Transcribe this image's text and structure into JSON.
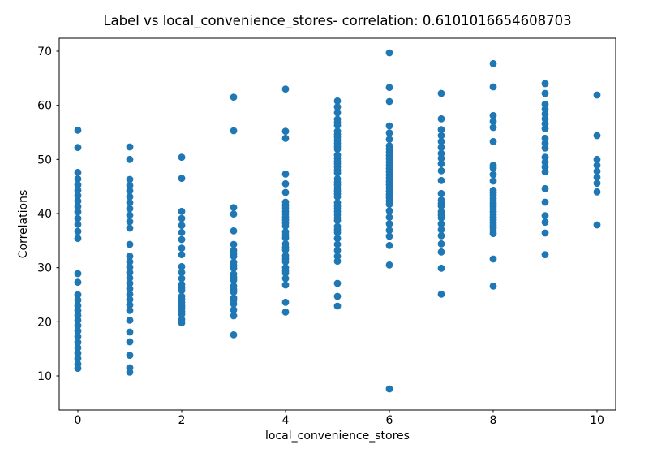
{
  "chart_data": {
    "type": "scatter",
    "title": "Label vs local_convenience_stores- correlation: 0.6101016654608703",
    "xlabel": "local_convenience_stores",
    "ylabel": "Correlations",
    "xticks": [
      0,
      2,
      4,
      6,
      8,
      10
    ],
    "yticks": [
      10,
      20,
      30,
      40,
      50,
      60,
      70
    ],
    "xlim": [
      -0.36,
      10.36
    ],
    "ylim": [
      3.7,
      72.4
    ],
    "grid": false,
    "legend": false,
    "marker_color": "#1f77b4",
    "series": [
      {
        "x": 0,
        "values": [
          55.4,
          52.2,
          47.6,
          46.4,
          45.3,
          44.3,
          43.3,
          42.3,
          41.3,
          40.3,
          39.1,
          38.0,
          36.7,
          35.4,
          28.9,
          27.3,
          25.0,
          24.0,
          23.0,
          22.1,
          21.2,
          20.3,
          19.3,
          18.3,
          17.3,
          16.2,
          15.2,
          14.2,
          13.2,
          12.2,
          11.4
        ]
      },
      {
        "x": 1,
        "values": [
          52.3,
          50.0,
          46.3,
          45.2,
          44.2,
          43.1,
          42.0,
          40.9,
          39.7,
          38.5,
          37.3,
          34.3,
          32.1,
          31.1,
          30.1,
          29.1,
          28.1,
          27.1,
          26.1,
          25.1,
          24.1,
          23.1,
          22.1,
          20.3,
          18.1,
          16.3,
          13.8,
          11.5,
          10.7
        ]
      },
      {
        "x": 2,
        "values": [
          50.4,
          46.5,
          40.4,
          39.1,
          37.8,
          36.5,
          35.2,
          33.6,
          32.4,
          30.2,
          29.1,
          28.0,
          26.9,
          26.3,
          25.8,
          24.7,
          24.2,
          23.6,
          22.9,
          22.5,
          21.9,
          21.4,
          20.4,
          19.8
        ]
      },
      {
        "x": 3,
        "values": [
          61.5,
          55.3,
          41.1,
          39.9,
          36.8,
          34.3,
          33.2,
          32.6,
          32.1,
          31.0,
          30.4,
          29.9,
          28.8,
          28.2,
          27.7,
          26.6,
          26.0,
          25.5,
          24.4,
          24.0,
          23.3,
          22.2,
          21.1,
          17.6
        ]
      },
      {
        "x": 4,
        "values": [
          63.0,
          55.2,
          53.9,
          47.3,
          45.5,
          43.9,
          42.1,
          41.5,
          41.0,
          40.4,
          39.9,
          39.3,
          38.8,
          38.2,
          37.7,
          36.6,
          36.0,
          35.5,
          34.4,
          33.8,
          33.3,
          32.2,
          31.6,
          31.1,
          30.0,
          29.4,
          29.0,
          28.0,
          26.8,
          23.6,
          21.8
        ]
      },
      {
        "x": 5,
        "values": [
          60.8,
          59.7,
          58.6,
          57.4,
          56.8,
          56.3,
          55.2,
          54.6,
          54.1,
          53.5,
          53.0,
          52.4,
          51.9,
          50.8,
          50.2,
          49.7,
          49.2,
          48.6,
          48.0,
          47.5,
          46.4,
          45.8,
          45.3,
          44.7,
          44.2,
          43.6,
          43.1,
          42.0,
          41.4,
          40.9,
          40.4,
          39.8,
          39.2,
          38.7,
          37.6,
          37.0,
          36.5,
          35.4,
          34.3,
          33.2,
          32.1,
          31.2,
          27.1,
          24.7,
          22.9
        ]
      },
      {
        "x": 6,
        "values": [
          69.7,
          63.3,
          60.7,
          56.2,
          54.9,
          53.7,
          52.5,
          51.9,
          51.3,
          50.7,
          50.1,
          49.5,
          48.9,
          48.3,
          47.7,
          47.1,
          46.5,
          45.9,
          45.3,
          44.7,
          44.1,
          43.5,
          42.9,
          42.3,
          41.7,
          40.5,
          39.3,
          38.1,
          36.9,
          35.8,
          34.1,
          30.5,
          7.6
        ]
      },
      {
        "x": 7,
        "values": [
          62.2,
          57.5,
          55.5,
          54.4,
          53.3,
          52.2,
          51.1,
          50.2,
          49.2,
          47.9,
          46.1,
          43.7,
          42.5,
          41.9,
          41.4,
          40.3,
          39.7,
          39.2,
          38.1,
          37.0,
          35.9,
          34.4,
          32.9,
          29.9,
          25.1
        ]
      },
      {
        "x": 8,
        "values": [
          67.7,
          63.4,
          58.1,
          57.0,
          55.9,
          53.3,
          48.9,
          48.4,
          47.2,
          46.0,
          44.3,
          43.8,
          43.3,
          42.8,
          42.3,
          41.8,
          41.3,
          40.8,
          40.3,
          39.8,
          39.3,
          38.8,
          38.3,
          37.8,
          37.3,
          36.8,
          36.3,
          31.6,
          26.6
        ]
      },
      {
        "x": 9,
        "values": [
          64.0,
          62.2,
          60.2,
          59.3,
          58.4,
          57.5,
          56.6,
          55.7,
          53.9,
          53.0,
          52.1,
          50.4,
          49.5,
          48.6,
          47.7,
          44.6,
          42.1,
          39.6,
          38.4,
          36.4,
          32.4
        ]
      },
      {
        "x": 10,
        "values": [
          61.9,
          54.4,
          50.0,
          48.9,
          47.8,
          46.7,
          45.6,
          44.0,
          37.9
        ]
      }
    ]
  }
}
